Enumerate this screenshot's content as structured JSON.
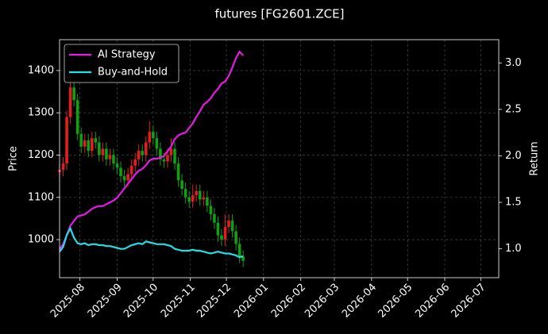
{
  "chart_data": {
    "type": "candlestick",
    "title": "futures [FG2601.ZCE]",
    "y_label": "Price",
    "y2_label": "Return",
    "x": [
      "2025-07-15",
      "2025-07-18",
      "2025-07-21",
      "2025-07-24",
      "2025-07-27",
      "2025-07-30",
      "2025-08-02",
      "2025-08-05",
      "2025-08-08",
      "2025-08-11",
      "2025-08-14",
      "2025-08-17",
      "2025-08-20",
      "2025-08-23",
      "2025-08-26",
      "2025-08-29",
      "2025-09-01",
      "2025-09-04",
      "2025-09-07",
      "2025-09-10",
      "2025-09-13",
      "2025-09-16",
      "2025-09-19",
      "2025-09-22",
      "2025-09-25",
      "2025-09-28",
      "2025-10-01",
      "2025-10-04",
      "2025-10-07",
      "2025-10-10",
      "2025-10-13",
      "2025-10-16",
      "2025-10-19",
      "2025-10-22",
      "2025-10-25",
      "2025-10-28",
      "2025-10-31",
      "2025-11-03",
      "2025-11-06",
      "2025-11-09",
      "2025-11-12",
      "2025-11-15",
      "2025-11-18",
      "2025-11-21",
      "2025-11-24",
      "2025-11-27",
      "2025-11-30",
      "2025-12-03",
      "2025-12-06",
      "2025-12-09",
      "2025-12-12",
      "2025-12-15"
    ],
    "open": [
      1160,
      1165,
      1180,
      1290,
      1360,
      1330,
      1250,
      1220,
      1235,
      1210,
      1240,
      1230,
      1200,
      1215,
      1190,
      1200,
      1180,
      1170,
      1150,
      1140,
      1155,
      1175,
      1190,
      1210,
      1200,
      1230,
      1255,
      1240,
      1215,
      1190,
      1185,
      1200,
      1215,
      1180,
      1140,
      1120,
      1100,
      1090,
      1105,
      1115,
      1095,
      1100,
      1080,
      1060,
      1040,
      1010,
      1000,
      1030,
      1045,
      1020,
      990,
      960
    ],
    "high": [
      1180,
      1195,
      1305,
      1390,
      1375,
      1345,
      1265,
      1250,
      1250,
      1255,
      1255,
      1245,
      1230,
      1230,
      1215,
      1215,
      1195,
      1185,
      1165,
      1170,
      1190,
      1205,
      1225,
      1225,
      1245,
      1280,
      1270,
      1255,
      1230,
      1205,
      1215,
      1240,
      1230,
      1195,
      1155,
      1135,
      1115,
      1130,
      1130,
      1130,
      1115,
      1115,
      1095,
      1075,
      1055,
      1025,
      1060,
      1060,
      1060,
      1035,
      1005,
      975
    ],
    "low": [
      1145,
      1150,
      1165,
      1275,
      1315,
      1235,
      1205,
      1205,
      1195,
      1195,
      1215,
      1185,
      1185,
      1175,
      1175,
      1165,
      1155,
      1135,
      1125,
      1125,
      1140,
      1160,
      1175,
      1185,
      1185,
      1215,
      1225,
      1200,
      1175,
      1170,
      1170,
      1185,
      1165,
      1125,
      1105,
      1085,
      1075,
      1075,
      1090,
      1080,
      1080,
      1065,
      1045,
      1025,
      995,
      985,
      985,
      1015,
      1005,
      975,
      945,
      935
    ],
    "close": [
      1165,
      1180,
      1290,
      1360,
      1330,
      1250,
      1220,
      1235,
      1210,
      1240,
      1230,
      1200,
      1215,
      1190,
      1200,
      1180,
      1170,
      1150,
      1140,
      1155,
      1175,
      1190,
      1210,
      1200,
      1230,
      1255,
      1240,
      1215,
      1190,
      1185,
      1200,
      1215,
      1180,
      1140,
      1120,
      1100,
      1090,
      1105,
      1115,
      1095,
      1100,
      1080,
      1060,
      1040,
      1010,
      1000,
      1030,
      1045,
      1020,
      990,
      960,
      950
    ],
    "up_color": "#e02020",
    "down_color": "#10a010",
    "series": [
      {
        "name": "AI Strategy",
        "color": "#e619e6",
        "axis": "y2",
        "values": [
          1.0,
          1.05,
          1.15,
          1.25,
          1.3,
          1.35,
          1.36,
          1.37,
          1.4,
          1.43,
          1.45,
          1.46,
          1.46,
          1.48,
          1.5,
          1.52,
          1.55,
          1.6,
          1.65,
          1.7,
          1.75,
          1.8,
          1.84,
          1.86,
          1.9,
          1.95,
          1.97,
          1.97,
          1.98,
          2.0,
          2.05,
          2.1,
          2.18,
          2.22,
          2.24,
          2.25,
          2.3,
          2.35,
          2.42,
          2.48,
          2.55,
          2.58,
          2.62,
          2.68,
          2.72,
          2.78,
          2.8,
          2.86,
          2.95,
          3.05,
          3.12,
          3.08
        ]
      },
      {
        "name": "Buy-and-Hold",
        "color": "#22dde8",
        "axis": "y2",
        "values": [
          0.97,
          1.02,
          1.15,
          1.22,
          1.12,
          1.06,
          1.05,
          1.06,
          1.04,
          1.05,
          1.05,
          1.04,
          1.04,
          1.03,
          1.03,
          1.02,
          1.01,
          1.0,
          1.0,
          1.02,
          1.04,
          1.05,
          1.06,
          1.05,
          1.08,
          1.07,
          1.06,
          1.05,
          1.05,
          1.05,
          1.04,
          1.03,
          1.0,
          0.99,
          0.98,
          0.98,
          0.98,
          0.99,
          0.98,
          0.98,
          0.97,
          0.96,
          0.95,
          0.96,
          0.97,
          0.96,
          0.95,
          0.95,
          0.94,
          0.93,
          0.91,
          0.92
        ]
      }
    ],
    "xlim": [
      "2025-07-15",
      "2026-07-16"
    ],
    "xticks": [
      "2025-08",
      "2025-09",
      "2025-10",
      "2025-11",
      "2025-12",
      "2026-01",
      "2026-02",
      "2026-03",
      "2026-04",
      "2026-05",
      "2026-06",
      "2026-07"
    ],
    "ylim": [
      910,
      1473
    ],
    "yticks": [
      1000,
      1100,
      1200,
      1300,
      1400
    ],
    "y2lim": [
      0.69,
      3.25
    ],
    "y2ticks": [
      {
        "value": 1,
        "label": "1.0"
      },
      1.5,
      {
        "value": 2,
        "label": "2.0"
      },
      2.5,
      {
        "value": 3,
        "label": "3.0"
      }
    ],
    "grid": true,
    "legend": "upper left"
  }
}
